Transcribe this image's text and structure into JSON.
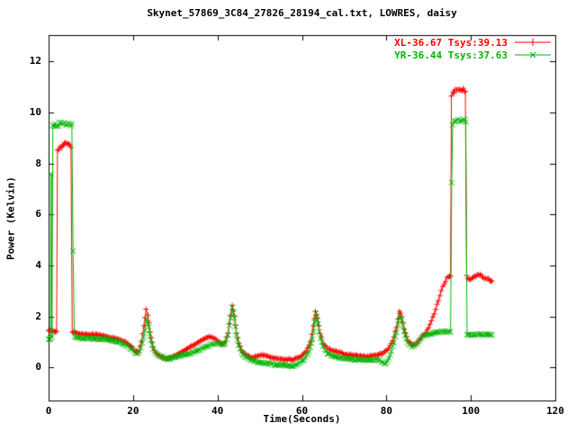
{
  "chart_data": {
    "type": "line",
    "title": "Skynet_57869_3C84_27826_28194_cal.txt, LOWRES, daisy",
    "xlabel": "Time(Seconds)",
    "ylabel": "Power (Kelvin)",
    "xlim": [
      0,
      120
    ],
    "ylim": [
      -1.3,
      13.03
    ],
    "x_ticks": [
      0,
      20,
      40,
      60,
      80,
      100,
      120
    ],
    "y_ticks": [
      0,
      2,
      4,
      6,
      8,
      10,
      12
    ],
    "grid": false,
    "legend_position": "top-right",
    "axis_color": "#000000",
    "background_color": "#ffffff",
    "series": [
      {
        "name": "XL-36.67 Tsys:39.13",
        "color": "#ff0000",
        "marker": "plus",
        "points": [
          [
            0,
            1.45
          ],
          [
            0.8,
            1.42
          ],
          [
            1.6,
            1.4
          ],
          [
            1.9,
            1.42
          ],
          [
            2.1,
            8.55
          ],
          [
            2.5,
            8.6
          ],
          [
            3,
            8.65
          ],
          [
            3.5,
            8.7
          ],
          [
            4,
            8.8
          ],
          [
            4.5,
            8.75
          ],
          [
            5,
            8.7
          ],
          [
            5.3,
            8.65
          ],
          [
            5.6,
            1.4
          ],
          [
            6.5,
            1.35
          ],
          [
            8,
            1.3
          ],
          [
            10,
            1.3
          ],
          [
            12,
            1.27
          ],
          [
            14,
            1.2
          ],
          [
            16,
            1.12
          ],
          [
            18,
            1.0
          ],
          [
            19.5,
            0.85
          ],
          [
            20.5,
            0.62
          ],
          [
            21.3,
            0.6
          ],
          [
            22,
            1.0
          ],
          [
            22.6,
            1.6
          ],
          [
            23.1,
            2.3
          ],
          [
            23.5,
            2.05
          ],
          [
            24,
            1.4
          ],
          [
            24.5,
            0.95
          ],
          [
            25,
            0.65
          ],
          [
            26,
            0.48
          ],
          [
            27,
            0.4
          ],
          [
            28,
            0.35
          ],
          [
            29.5,
            0.42
          ],
          [
            31,
            0.55
          ],
          [
            33,
            0.75
          ],
          [
            35,
            0.95
          ],
          [
            36.5,
            1.1
          ],
          [
            38,
            1.2
          ],
          [
            39,
            1.15
          ],
          [
            40,
            1.05
          ],
          [
            41,
            0.92
          ],
          [
            41.8,
            0.98
          ],
          [
            42.5,
            1.35
          ],
          [
            43.1,
            2.05
          ],
          [
            43.5,
            2.4
          ],
          [
            44,
            2.0
          ],
          [
            44.5,
            1.35
          ],
          [
            45,
            0.95
          ],
          [
            45.7,
            0.68
          ],
          [
            46.5,
            0.52
          ],
          [
            48,
            0.38
          ],
          [
            49.5,
            0.42
          ],
          [
            50.5,
            0.5
          ],
          [
            52,
            0.42
          ],
          [
            54,
            0.34
          ],
          [
            56,
            0.3
          ],
          [
            58,
            0.32
          ],
          [
            59.5,
            0.4
          ],
          [
            61,
            0.62
          ],
          [
            62,
            1.0
          ],
          [
            62.7,
            1.6
          ],
          [
            63.2,
            2.2
          ],
          [
            63.7,
            1.9
          ],
          [
            64.3,
            1.35
          ],
          [
            65,
            0.95
          ],
          [
            66,
            0.75
          ],
          [
            67.5,
            0.65
          ],
          [
            69,
            0.58
          ],
          [
            71,
            0.5
          ],
          [
            73,
            0.46
          ],
          [
            75,
            0.42
          ],
          [
            77,
            0.46
          ],
          [
            79,
            0.55
          ],
          [
            80.5,
            0.72
          ],
          [
            81.5,
            1.05
          ],
          [
            82.4,
            1.55
          ],
          [
            83.1,
            2.2
          ],
          [
            83.6,
            2.0
          ],
          [
            84.2,
            1.5
          ],
          [
            85,
            1.05
          ],
          [
            86,
            0.88
          ],
          [
            87,
            0.92
          ],
          [
            88,
            1.12
          ],
          [
            89,
            1.3
          ],
          [
            90,
            1.55
          ],
          [
            91,
            1.95
          ],
          [
            92,
            2.45
          ],
          [
            93,
            3.0
          ],
          [
            94,
            3.4
          ],
          [
            94.7,
            3.55
          ],
          [
            95.2,
            3.6
          ],
          [
            95.4,
            10.6
          ],
          [
            95.8,
            10.75
          ],
          [
            96.3,
            10.85
          ],
          [
            97,
            10.9
          ],
          [
            97.6,
            10.85
          ],
          [
            98.2,
            10.95
          ],
          [
            98.7,
            10.8
          ],
          [
            99,
            3.55
          ],
          [
            99.6,
            3.45
          ],
          [
            100.5,
            3.5
          ],
          [
            101.5,
            3.6
          ],
          [
            102.5,
            3.6
          ],
          [
            103.5,
            3.5
          ],
          [
            104.5,
            3.45
          ],
          [
            105,
            3.4
          ]
        ]
      },
      {
        "name": "YR-36.44 Tsys:37.63",
        "color": "#00b400",
        "marker": "cross",
        "points": [
          [
            0,
            1.1
          ],
          [
            0.45,
            1.1
          ],
          [
            0.62,
            7.6
          ],
          [
            0.8,
            1.15
          ],
          [
            1.0,
            9.45
          ],
          [
            1.5,
            9.55
          ],
          [
            2,
            9.5
          ],
          [
            2.6,
            9.55
          ],
          [
            3.2,
            9.6
          ],
          [
            3.8,
            9.55
          ],
          [
            4.4,
            9.5
          ],
          [
            5,
            9.55
          ],
          [
            5.5,
            9.5
          ],
          [
            5.8,
            4.6
          ],
          [
            6.1,
            1.2
          ],
          [
            7,
            1.15
          ],
          [
            9,
            1.13
          ],
          [
            11,
            1.12
          ],
          [
            13,
            1.1
          ],
          [
            15,
            1.05
          ],
          [
            17,
            0.97
          ],
          [
            18.5,
            0.88
          ],
          [
            19.8,
            0.7
          ],
          [
            20.8,
            0.52
          ],
          [
            21.5,
            0.58
          ],
          [
            22.2,
            0.95
          ],
          [
            22.8,
            1.45
          ],
          [
            23.2,
            1.9
          ],
          [
            23.7,
            1.6
          ],
          [
            24.2,
            1.1
          ],
          [
            24.8,
            0.75
          ],
          [
            25.5,
            0.55
          ],
          [
            26.5,
            0.42
          ],
          [
            28,
            0.34
          ],
          [
            29.5,
            0.38
          ],
          [
            31,
            0.44
          ],
          [
            33,
            0.52
          ],
          [
            35,
            0.65
          ],
          [
            37,
            0.8
          ],
          [
            38.5,
            0.9
          ],
          [
            40,
            0.95
          ],
          [
            41,
            0.88
          ],
          [
            41.8,
            0.95
          ],
          [
            42.5,
            1.3
          ],
          [
            43.1,
            1.95
          ],
          [
            43.5,
            2.35
          ],
          [
            44,
            1.95
          ],
          [
            44.5,
            1.3
          ],
          [
            45,
            0.85
          ],
          [
            45.7,
            0.58
          ],
          [
            46.5,
            0.42
          ],
          [
            48,
            0.28
          ],
          [
            50,
            0.2
          ],
          [
            52,
            0.15
          ],
          [
            54,
            0.1
          ],
          [
            56,
            0.07
          ],
          [
            57.5,
            0.05
          ],
          [
            59,
            0.12
          ],
          [
            60.5,
            0.3
          ],
          [
            61.7,
            0.6
          ],
          [
            62.5,
            1.1
          ],
          [
            63,
            1.75
          ],
          [
            63.3,
            2.1
          ],
          [
            63.8,
            1.7
          ],
          [
            64.4,
            1.15
          ],
          [
            65,
            0.8
          ],
          [
            66,
            0.55
          ],
          [
            67.5,
            0.42
          ],
          [
            69,
            0.37
          ],
          [
            71,
            0.33
          ],
          [
            73,
            0.3
          ],
          [
            75,
            0.28
          ],
          [
            77,
            0.3
          ],
          [
            78.5,
            0.28
          ],
          [
            79.8,
            0.12
          ],
          [
            80.6,
            0.35
          ],
          [
            81.5,
            0.8
          ],
          [
            82.4,
            1.4
          ],
          [
            83.1,
            2.0
          ],
          [
            83.6,
            1.85
          ],
          [
            84.2,
            1.4
          ],
          [
            85,
            1.0
          ],
          [
            86,
            0.78
          ],
          [
            87,
            0.88
          ],
          [
            88,
            1.1
          ],
          [
            89,
            1.25
          ],
          [
            90,
            1.32
          ],
          [
            91.5,
            1.35
          ],
          [
            93,
            1.4
          ],
          [
            94.5,
            1.4
          ],
          [
            95.2,
            1.38
          ],
          [
            95.45,
            7.3
          ],
          [
            95.7,
            9.55
          ],
          [
            96.3,
            9.65
          ],
          [
            97,
            9.7
          ],
          [
            97.7,
            9.65
          ],
          [
            98.3,
            9.7
          ],
          [
            98.8,
            9.6
          ],
          [
            99.1,
            1.3
          ],
          [
            100,
            1.28
          ],
          [
            101.5,
            1.3
          ],
          [
            103,
            1.28
          ],
          [
            104.5,
            1.26
          ],
          [
            105,
            1.25
          ]
        ]
      }
    ]
  }
}
